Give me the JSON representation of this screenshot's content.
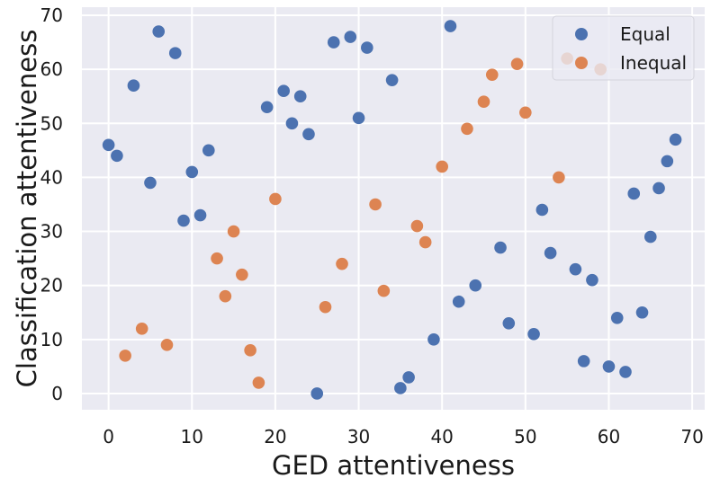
{
  "chart_data": {
    "type": "scatter",
    "title": "",
    "xlabel": "GED attentiveness",
    "ylabel": "Classification attentiveness",
    "xlim": [
      -3.2,
      71.5
    ],
    "ylim": [
      -3,
      71.5
    ],
    "xticks": [
      0,
      10,
      20,
      30,
      40,
      50,
      60,
      70
    ],
    "yticks": [
      0,
      10,
      20,
      30,
      40,
      50,
      60,
      70
    ],
    "grid": true,
    "legend_position": "top-right",
    "series": [
      {
        "name": "Equal",
        "color": "#4c72b0",
        "points": [
          [
            0,
            46
          ],
          [
            1,
            44
          ],
          [
            3,
            57
          ],
          [
            5,
            39
          ],
          [
            6,
            67
          ],
          [
            8,
            63
          ],
          [
            9,
            32
          ],
          [
            10,
            41
          ],
          [
            11,
            33
          ],
          [
            12,
            45
          ],
          [
            19,
            53
          ],
          [
            21,
            56
          ],
          [
            22,
            50
          ],
          [
            23,
            55
          ],
          [
            24,
            48
          ],
          [
            25,
            0
          ],
          [
            27,
            65
          ],
          [
            29,
            66
          ],
          [
            30,
            51
          ],
          [
            31,
            64
          ],
          [
            34,
            58
          ],
          [
            35,
            1
          ],
          [
            36,
            3
          ],
          [
            39,
            10
          ],
          [
            41,
            68
          ],
          [
            42,
            17
          ],
          [
            44,
            20
          ],
          [
            47,
            27
          ],
          [
            48,
            13
          ],
          [
            51,
            11
          ],
          [
            52,
            34
          ],
          [
            53,
            26
          ],
          [
            56,
            23
          ],
          [
            57,
            6
          ],
          [
            58,
            21
          ],
          [
            60,
            5
          ],
          [
            61,
            14
          ],
          [
            62,
            4
          ],
          [
            63,
            37
          ],
          [
            64,
            15
          ],
          [
            65,
            29
          ],
          [
            66,
            38
          ],
          [
            67,
            43
          ],
          [
            68,
            47
          ]
        ]
      },
      {
        "name": "Inequal",
        "color": "#dd8452",
        "points": [
          [
            2,
            7
          ],
          [
            4,
            12
          ],
          [
            7,
            9
          ],
          [
            13,
            25
          ],
          [
            14,
            18
          ],
          [
            15,
            30
          ],
          [
            16,
            22
          ],
          [
            17,
            8
          ],
          [
            18,
            2
          ],
          [
            20,
            36
          ],
          [
            26,
            16
          ],
          [
            28,
            24
          ],
          [
            32,
            35
          ],
          [
            33,
            19
          ],
          [
            37,
            31
          ],
          [
            38,
            28
          ],
          [
            40,
            42
          ],
          [
            43,
            49
          ],
          [
            45,
            54
          ],
          [
            46,
            59
          ],
          [
            49,
            61
          ],
          [
            50,
            52
          ],
          [
            54,
            40
          ],
          [
            55,
            62
          ],
          [
            59,
            60
          ]
        ]
      }
    ]
  }
}
